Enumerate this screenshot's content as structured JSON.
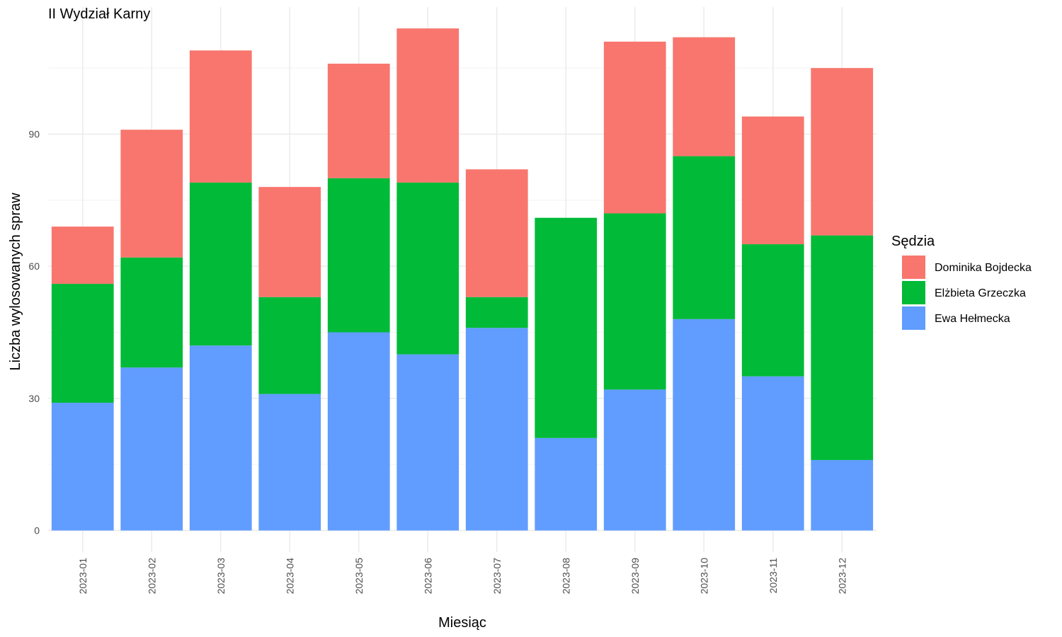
{
  "chart_data": {
    "type": "bar",
    "stacked": true,
    "title": "II Wydział Karny",
    "xlabel": "Miesiąc",
    "ylabel": "Liczba wylosowanych spraw",
    "legend_title": "Sędzia",
    "legend_position": "right",
    "ylim": [
      0,
      118
    ],
    "yticks": [
      0,
      30,
      60,
      90
    ],
    "grid": true,
    "categories": [
      "2023-01",
      "2023-02",
      "2023-03",
      "2023-04",
      "2023-05",
      "2023-06",
      "2023-07",
      "2023-08",
      "2023-09",
      "2023-10",
      "2023-11",
      "2023-12"
    ],
    "series": [
      {
        "name": "Ewa Hełmecka",
        "color": "#619CFF",
        "values": [
          29,
          37,
          42,
          31,
          45,
          40,
          46,
          21,
          32,
          48,
          35,
          16
        ]
      },
      {
        "name": "Elżbieta Grzeczka",
        "color": "#00BA38",
        "values": [
          27,
          25,
          37,
          22,
          35,
          39,
          7,
          50,
          40,
          37,
          30,
          51
        ]
      },
      {
        "name": "Dominika Bojdecka",
        "color": "#F8766D",
        "values": [
          13,
          29,
          30,
          25,
          26,
          35,
          29,
          0,
          39,
          27,
          29,
          38
        ]
      }
    ],
    "legend_order": [
      "Dominika Bojdecka",
      "Elżbieta Grzeczka",
      "Ewa Hełmecka"
    ]
  }
}
